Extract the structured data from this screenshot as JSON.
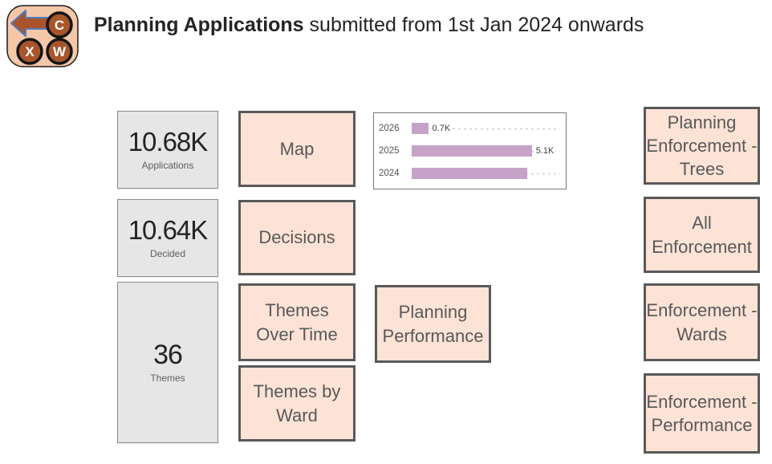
{
  "header": {
    "logo": {
      "letters": [
        "C",
        "X",
        "W"
      ],
      "arrow": "back-arrow"
    },
    "title_bold": "Planning Applications",
    "title_rest": " submitted from 1st Jan 2024 onwards"
  },
  "kpis": [
    {
      "value": "10.68K",
      "label": "Applications"
    },
    {
      "value": "10.64K",
      "label": "Decided"
    },
    {
      "value": "36",
      "label": "Themes"
    }
  ],
  "nav": {
    "buttons": [
      {
        "id": "map",
        "label": "Map"
      },
      {
        "id": "decisions",
        "label": "Decisions"
      },
      {
        "id": "themes-over-time",
        "label": "Themes\nOver Time"
      },
      {
        "id": "themes-by-ward",
        "label": "Themes by\nWard"
      },
      {
        "id": "planning-performance",
        "label": "Planning\nPerformance"
      },
      {
        "id": "planning-enforcement-trees",
        "label": "Planning\nEnforcement -\nTrees"
      },
      {
        "id": "all-enforcement",
        "label": "All\nEnforcement"
      },
      {
        "id": "enforcement-wards",
        "label": "Enforcement -\nWards"
      },
      {
        "id": "enforcement-performance",
        "label": "Enforcement -\nPerformance"
      }
    ]
  },
  "chart_data": {
    "type": "bar",
    "orientation": "horizontal",
    "categories": [
      "2026",
      "2025",
      "2024"
    ],
    "values": [
      0.7,
      5.1,
      4.9
    ],
    "value_labels": [
      "0.7K",
      "5.1K",
      ""
    ],
    "xlim": [
      0,
      6.3
    ],
    "grid": "dotted-leaders",
    "legend": "none",
    "title": ""
  },
  "colors": {
    "accent_peach": "#fce3d6",
    "button_border": "#595959",
    "button_text": "#595959",
    "kpi_fill": "#e6e6e6",
    "kpi_border": "#8a8a8a",
    "bar_fill": "#c6a2c9",
    "title_text": "#252423",
    "logo_bg": "#f5c7a9",
    "logo_circle": "#a9552b",
    "logo_arrow": "#a9542c",
    "logo_arrow_stroke": "#4d7ec0"
  }
}
